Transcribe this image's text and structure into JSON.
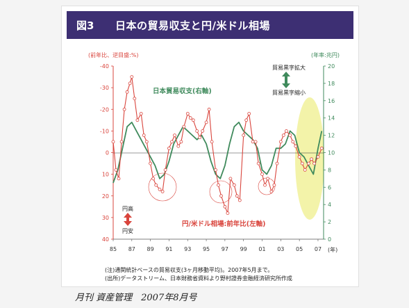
{
  "header": {
    "figure_number": "図3",
    "title": "日本の貿易収支と円/米ドル相場"
  },
  "notes": {
    "line1": "(注)通関統計ベースの貿易収支(3ヶ月移動平均)。2007年5月まで。",
    "line2": "(出所)データストリーム、日本財務省資料より野村證券金融経済研究所作成"
  },
  "footer": {
    "publication": "月刊 資産管理　2007年8月号"
  },
  "colors": {
    "header_bg": "#3d2f73",
    "trade": "#3f8a5c",
    "fx": "#d9443c",
    "highlight": "#f1f19a"
  },
  "chart_data": {
    "type": "line",
    "left_axis_label": "(前年比、逆目盛:%)",
    "right_axis_label": "(年率:兆円)",
    "left_ticks": [
      "-40",
      "-30",
      "-20",
      "-10",
      "0",
      "10",
      "20",
      "30",
      "40"
    ],
    "left_range": [
      -40,
      40
    ],
    "left_inverted": true,
    "right_ticks": [
      "20",
      "18",
      "16",
      "14",
      "12",
      "10",
      "8",
      "6",
      "4",
      "2",
      "0"
    ],
    "right_range": [
      0,
      20
    ],
    "x_ticks": [
      "85",
      "87",
      "89",
      "91",
      "93",
      "95",
      "97",
      "99",
      "01",
      "03",
      "05",
      "07"
    ],
    "x_unit": "(年)",
    "x_range": [
      1985,
      2007.6
    ],
    "series": [
      {
        "name": "日本貿易収支(右軸)",
        "axis": "right",
        "color": "#3f8a5c",
        "x": [
          1985.0,
          1985.5,
          1986.0,
          1986.5,
          1987.0,
          1987.5,
          1988.0,
          1988.5,
          1989.0,
          1989.5,
          1990.0,
          1990.5,
          1991.0,
          1991.5,
          1992.0,
          1992.5,
          1993.0,
          1993.5,
          1994.0,
          1994.5,
          1995.0,
          1995.5,
          1996.0,
          1996.5,
          1997.0,
          1997.5,
          1998.0,
          1998.5,
          1999.0,
          1999.5,
          2000.0,
          2000.5,
          2001.0,
          2001.5,
          2002.0,
          2002.5,
          2003.0,
          2003.5,
          2004.0,
          2004.5,
          2005.0,
          2005.5,
          2006.0,
          2006.5,
          2007.0,
          2007.4
        ],
        "y": [
          6.5,
          8.0,
          10.5,
          13.0,
          13.5,
          12.5,
          11.5,
          10.5,
          9.5,
          8.5,
          7.0,
          7.5,
          9.0,
          11.0,
          12.0,
          13.0,
          12.5,
          12.0,
          11.5,
          12.0,
          11.0,
          9.0,
          7.5,
          7.0,
          8.5,
          11.0,
          13.0,
          13.5,
          12.5,
          12.0,
          11.5,
          10.5,
          8.0,
          7.5,
          8.5,
          10.5,
          10.5,
          11.0,
          12.5,
          12.0,
          10.0,
          9.5,
          8.5,
          7.5,
          10.5,
          12.5
        ]
      },
      {
        "name": "円/米ドル相場:前年比(左軸)",
        "axis": "left",
        "color": "#d9443c",
        "x": [
          1985.0,
          1985.3,
          1985.6,
          1985.9,
          1986.2,
          1986.5,
          1986.8,
          1987.0,
          1987.3,
          1987.6,
          1988.0,
          1988.3,
          1988.6,
          1989.0,
          1989.3,
          1989.6,
          1990.0,
          1990.3,
          1990.6,
          1991.0,
          1991.3,
          1991.6,
          1992.0,
          1992.3,
          1992.6,
          1993.0,
          1993.3,
          1993.6,
          1994.0,
          1994.3,
          1994.6,
          1995.0,
          1995.3,
          1995.6,
          1996.0,
          1996.3,
          1996.6,
          1997.0,
          1997.3,
          1997.6,
          1998.0,
          1998.3,
          1998.6,
          1999.0,
          1999.3,
          1999.6,
          2000.0,
          2000.3,
          2000.6,
          2001.0,
          2001.3,
          2001.6,
          2002.0,
          2002.3,
          2002.6,
          2003.0,
          2003.3,
          2003.6,
          2004.0,
          2004.3,
          2004.6,
          2005.0,
          2005.3,
          2005.6,
          2006.0,
          2006.3,
          2006.6,
          2007.0,
          2007.4
        ],
        "y": [
          -5,
          8,
          12,
          -5,
          -20,
          -28,
          -32,
          -35,
          -25,
          -15,
          -18,
          -8,
          -5,
          5,
          12,
          15,
          17,
          18,
          8,
          -2,
          -5,
          -8,
          -3,
          -5,
          -12,
          -18,
          -16,
          -15,
          -10,
          -7,
          -10,
          -14,
          -20,
          -5,
          8,
          15,
          20,
          25,
          28,
          12,
          15,
          20,
          22,
          -8,
          -15,
          -18,
          -5,
          -5,
          5,
          10,
          15,
          12,
          18,
          15,
          5,
          -5,
          -8,
          -10,
          -8,
          -5,
          -3,
          2,
          5,
          8,
          5,
          3,
          5,
          2,
          -2
        ]
      }
    ],
    "annotations": {
      "left_up": "貿易黒字拡大",
      "left_down": "貿易黒字縮小",
      "yen_up": "円高",
      "yen_down": "円安"
    }
  }
}
